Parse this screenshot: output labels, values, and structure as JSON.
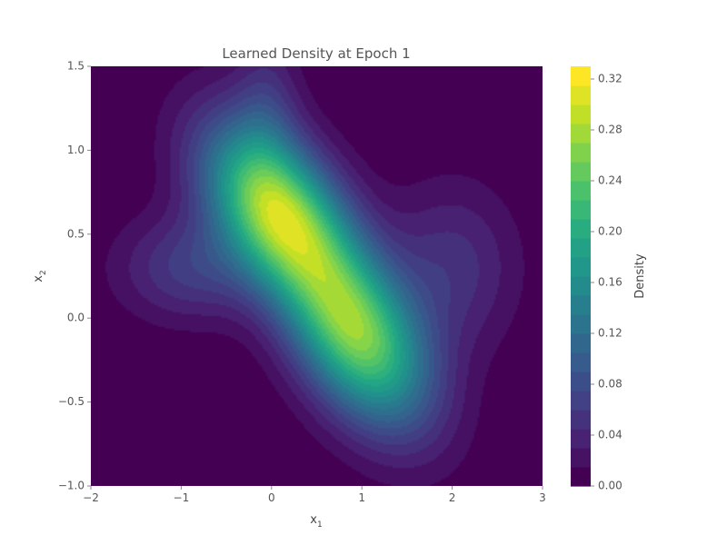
{
  "chart_data": {
    "type": "heatmap",
    "subtype": "filled-contour",
    "title": "Learned Density at Epoch 1",
    "xlabel_base": "x",
    "xlabel_sub": "1",
    "ylabel_base": "x",
    "ylabel_sub": "2",
    "xlim": [
      -2,
      3
    ],
    "ylim": [
      -1,
      1.5
    ],
    "x_ticks": [
      -2,
      -1,
      0,
      1,
      2,
      3
    ],
    "x_tick_labels": [
      "−2",
      "−1",
      "0",
      "1",
      "2",
      "3"
    ],
    "y_ticks": [
      -1.0,
      -0.5,
      0.0,
      0.5,
      1.0,
      1.5
    ],
    "y_tick_labels": [
      "−1.0",
      "−0.5",
      "0.0",
      "0.5",
      "1.0",
      "1.5"
    ],
    "colormap": "viridis",
    "colorbar": {
      "label": "Density",
      "range": [
        0.0,
        0.33
      ],
      "ticks": [
        0.0,
        0.04,
        0.08,
        0.12,
        0.16,
        0.2,
        0.24,
        0.28,
        0.32
      ],
      "tick_labels": [
        "0.00",
        "0.04",
        "0.08",
        "0.12",
        "0.16",
        "0.20",
        "0.24",
        "0.28",
        "0.32"
      ]
    },
    "peaks": [
      {
        "x": 0.1,
        "y": 0.65,
        "density": 0.33
      },
      {
        "x": 0.9,
        "y": -0.1,
        "density": 0.3
      }
    ],
    "background_color": "#440154",
    "grid": false
  }
}
